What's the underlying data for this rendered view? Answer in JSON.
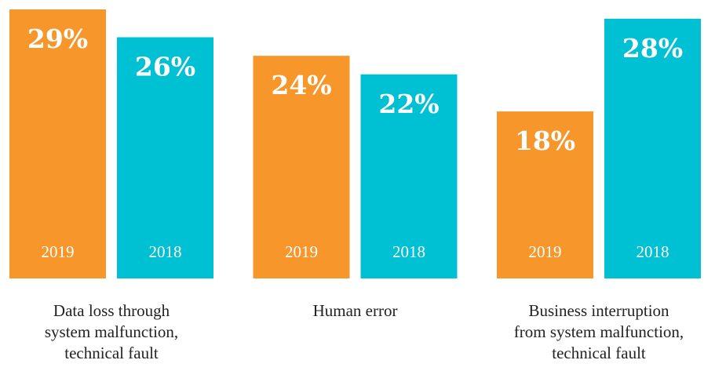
{
  "chart_data": {
    "type": "bar",
    "categories": [
      "Data loss through\nsystem malfunction,\ntechnical fault",
      "Human error",
      "Business interruption\nfrom system malfunction,\ntechnical fault"
    ],
    "series": [
      {
        "name": "2019",
        "color": "#f7962b",
        "values": [
          29,
          24,
          18
        ],
        "value_labels": [
          "29%",
          "24%",
          "18%"
        ]
      },
      {
        "name": "2018",
        "color": "#00c0d4",
        "values": [
          26,
          22,
          28
        ],
        "value_labels": [
          "26%",
          "22%",
          "28%"
        ]
      }
    ]
  }
}
